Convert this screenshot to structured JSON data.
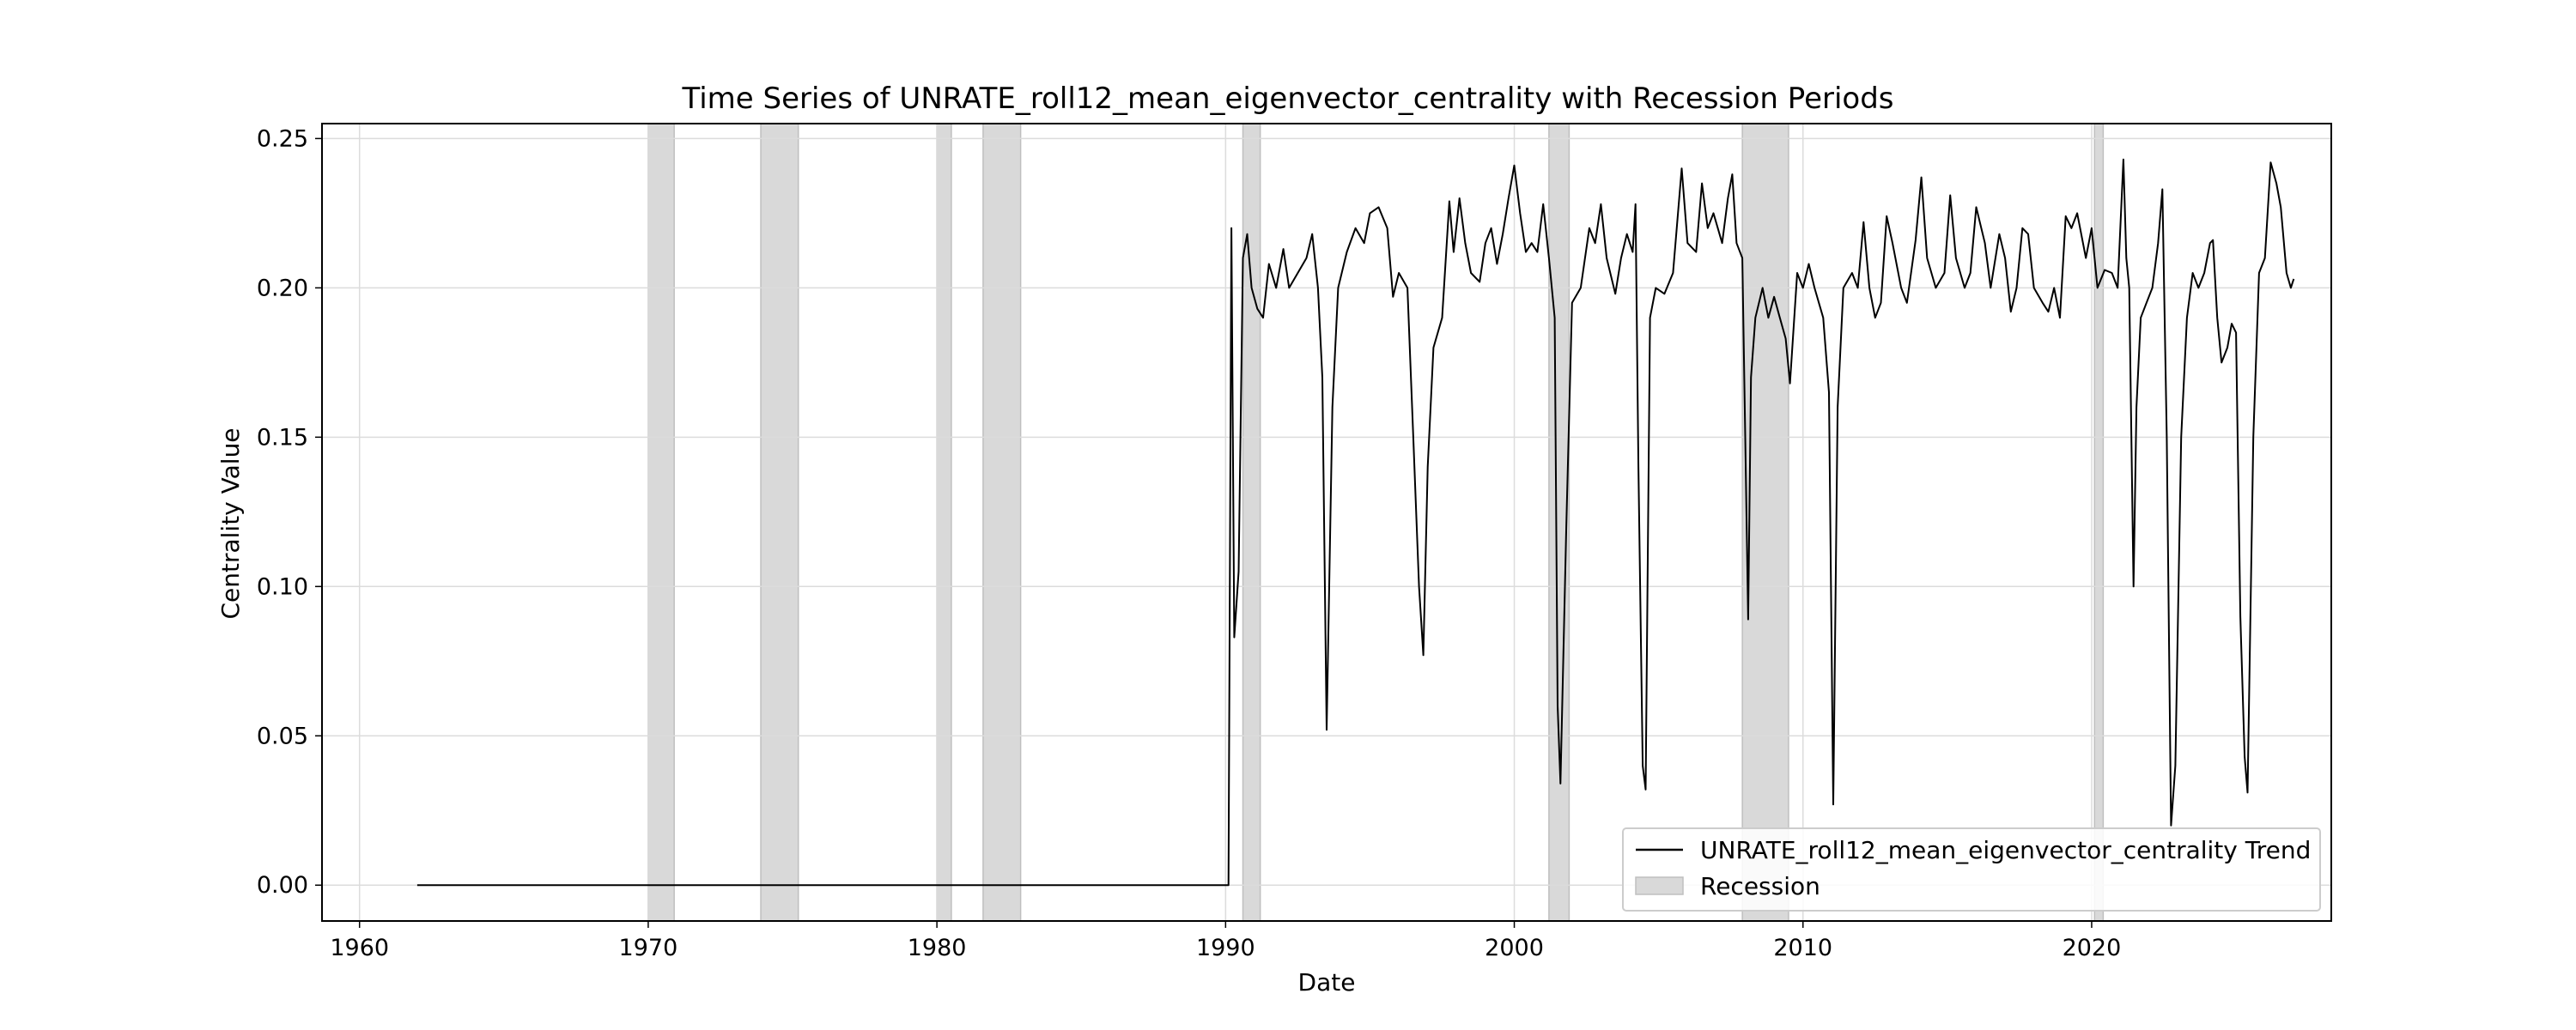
{
  "chart_data": {
    "type": "line",
    "title": "Time Series of UNRATE_roll12_mean_eigenvector_centrality with Recession Periods",
    "xlabel": "Date",
    "ylabel": "Centrality Value",
    "xlim": [
      1958.7,
      2028.3
    ],
    "ylim": [
      -0.012,
      0.255
    ],
    "x_ticks": [
      1960,
      1970,
      1980,
      1990,
      2000,
      2010,
      2020
    ],
    "x_tick_labels": [
      "1960",
      "1970",
      "1980",
      "1990",
      "2000",
      "2010",
      "2020"
    ],
    "y_ticks": [
      0.0,
      0.05,
      0.1,
      0.15,
      0.2,
      0.25
    ],
    "y_tick_labels": [
      "0.00",
      "0.05",
      "0.10",
      "0.15",
      "0.20",
      "0.25"
    ],
    "grid": true,
    "legend_position": "lower-right",
    "series": [
      {
        "name": "UNRATE_roll12_mean_eigenvector_centrality Trend",
        "color": "#000000",
        "points": [
          [
            1962.0,
            0.0
          ],
          [
            1975.0,
            0.0
          ],
          [
            1985.0,
            0.0
          ],
          [
            1990.1,
            0.0
          ],
          [
            1990.2,
            0.22
          ],
          [
            1990.3,
            0.083
          ],
          [
            1990.45,
            0.105
          ],
          [
            1990.6,
            0.21
          ],
          [
            1990.75,
            0.218
          ],
          [
            1990.9,
            0.2
          ],
          [
            1991.1,
            0.193
          ],
          [
            1991.3,
            0.19
          ],
          [
            1991.5,
            0.208
          ],
          [
            1991.75,
            0.2
          ],
          [
            1992.0,
            0.213
          ],
          [
            1992.2,
            0.2
          ],
          [
            1992.5,
            0.205
          ],
          [
            1992.8,
            0.21
          ],
          [
            1993.0,
            0.218
          ],
          [
            1993.2,
            0.2
          ],
          [
            1993.35,
            0.17
          ],
          [
            1993.5,
            0.052
          ],
          [
            1993.7,
            0.16
          ],
          [
            1993.9,
            0.2
          ],
          [
            1994.2,
            0.212
          ],
          [
            1994.5,
            0.22
          ],
          [
            1994.8,
            0.215
          ],
          [
            1995.0,
            0.225
          ],
          [
            1995.3,
            0.227
          ],
          [
            1995.6,
            0.22
          ],
          [
            1995.8,
            0.197
          ],
          [
            1996.0,
            0.205
          ],
          [
            1996.3,
            0.2
          ],
          [
            1996.5,
            0.15
          ],
          [
            1996.7,
            0.1
          ],
          [
            1996.85,
            0.077
          ],
          [
            1997.0,
            0.14
          ],
          [
            1997.2,
            0.18
          ],
          [
            1997.5,
            0.19
          ],
          [
            1997.75,
            0.229
          ],
          [
            1997.9,
            0.212
          ],
          [
            1998.1,
            0.23
          ],
          [
            1998.3,
            0.215
          ],
          [
            1998.5,
            0.205
          ],
          [
            1998.8,
            0.202
          ],
          [
            1999.0,
            0.215
          ],
          [
            1999.2,
            0.22
          ],
          [
            1999.4,
            0.208
          ],
          [
            1999.6,
            0.218
          ],
          [
            1999.8,
            0.23
          ],
          [
            2000.0,
            0.241
          ],
          [
            2000.2,
            0.225
          ],
          [
            2000.4,
            0.212
          ],
          [
            2000.6,
            0.215
          ],
          [
            2000.8,
            0.212
          ],
          [
            2001.0,
            0.228
          ],
          [
            2001.2,
            0.21
          ],
          [
            2001.4,
            0.19
          ],
          [
            2001.5,
            0.06
          ],
          [
            2001.6,
            0.034
          ],
          [
            2001.8,
            0.12
          ],
          [
            2002.0,
            0.195
          ],
          [
            2002.3,
            0.2
          ],
          [
            2002.6,
            0.22
          ],
          [
            2002.8,
            0.215
          ],
          [
            2003.0,
            0.228
          ],
          [
            2003.2,
            0.21
          ],
          [
            2003.5,
            0.198
          ],
          [
            2003.7,
            0.21
          ],
          [
            2003.9,
            0.218
          ],
          [
            2004.1,
            0.212
          ],
          [
            2004.2,
            0.228
          ],
          [
            2004.3,
            0.14
          ],
          [
            2004.45,
            0.04
          ],
          [
            2004.55,
            0.032
          ],
          [
            2004.7,
            0.19
          ],
          [
            2004.9,
            0.2
          ],
          [
            2005.2,
            0.198
          ],
          [
            2005.5,
            0.205
          ],
          [
            2005.8,
            0.24
          ],
          [
            2006.0,
            0.215
          ],
          [
            2006.3,
            0.212
          ],
          [
            2006.5,
            0.235
          ],
          [
            2006.7,
            0.22
          ],
          [
            2006.9,
            0.225
          ],
          [
            2007.2,
            0.215
          ],
          [
            2007.4,
            0.23
          ],
          [
            2007.55,
            0.238
          ],
          [
            2007.7,
            0.215
          ],
          [
            2007.9,
            0.21
          ],
          [
            2008.0,
            0.15
          ],
          [
            2008.1,
            0.089
          ],
          [
            2008.2,
            0.17
          ],
          [
            2008.35,
            0.19
          ],
          [
            2008.6,
            0.2
          ],
          [
            2008.8,
            0.19
          ],
          [
            2009.0,
            0.197
          ],
          [
            2009.2,
            0.19
          ],
          [
            2009.4,
            0.183
          ],
          [
            2009.55,
            0.168
          ],
          [
            2009.8,
            0.205
          ],
          [
            2010.0,
            0.2
          ],
          [
            2010.2,
            0.208
          ],
          [
            2010.4,
            0.2
          ],
          [
            2010.7,
            0.19
          ],
          [
            2010.9,
            0.165
          ],
          [
            2011.05,
            0.027
          ],
          [
            2011.2,
            0.16
          ],
          [
            2011.4,
            0.2
          ],
          [
            2011.7,
            0.205
          ],
          [
            2011.9,
            0.2
          ],
          [
            2012.1,
            0.222
          ],
          [
            2012.3,
            0.2
          ],
          [
            2012.5,
            0.19
          ],
          [
            2012.7,
            0.195
          ],
          [
            2012.9,
            0.224
          ],
          [
            2013.1,
            0.215
          ],
          [
            2013.4,
            0.2
          ],
          [
            2013.6,
            0.195
          ],
          [
            2013.9,
            0.216
          ],
          [
            2014.1,
            0.237
          ],
          [
            2014.3,
            0.21
          ],
          [
            2014.6,
            0.2
          ],
          [
            2014.9,
            0.205
          ],
          [
            2015.1,
            0.231
          ],
          [
            2015.3,
            0.21
          ],
          [
            2015.6,
            0.2
          ],
          [
            2015.8,
            0.205
          ],
          [
            2016.0,
            0.227
          ],
          [
            2016.3,
            0.215
          ],
          [
            2016.5,
            0.2
          ],
          [
            2016.8,
            0.218
          ],
          [
            2017.0,
            0.21
          ],
          [
            2017.2,
            0.192
          ],
          [
            2017.4,
            0.2
          ],
          [
            2017.6,
            0.22
          ],
          [
            2017.8,
            0.218
          ],
          [
            2018.0,
            0.2
          ],
          [
            2018.3,
            0.195
          ],
          [
            2018.5,
            0.192
          ],
          [
            2018.7,
            0.2
          ],
          [
            2018.9,
            0.19
          ],
          [
            2019.1,
            0.224
          ],
          [
            2019.3,
            0.22
          ],
          [
            2019.5,
            0.225
          ],
          [
            2019.8,
            0.21
          ],
          [
            2020.0,
            0.22
          ],
          [
            2020.2,
            0.2
          ],
          [
            2020.45,
            0.206
          ],
          [
            2020.7,
            0.205
          ],
          [
            2020.9,
            0.2
          ],
          [
            2021.1,
            0.243
          ],
          [
            2021.2,
            0.21
          ],
          [
            2021.3,
            0.2
          ],
          [
            2021.45,
            0.1
          ],
          [
            2021.55,
            0.16
          ],
          [
            2021.7,
            0.19
          ],
          [
            2021.9,
            0.195
          ],
          [
            2022.1,
            0.2
          ],
          [
            2022.3,
            0.215
          ],
          [
            2022.45,
            0.233
          ],
          [
            2022.6,
            0.15
          ],
          [
            2022.75,
            0.02
          ],
          [
            2022.9,
            0.04
          ],
          [
            2023.1,
            0.15
          ],
          [
            2023.3,
            0.19
          ],
          [
            2023.5,
            0.205
          ],
          [
            2023.7,
            0.2
          ],
          [
            2023.9,
            0.205
          ],
          [
            2024.1,
            0.215
          ],
          [
            2024.2,
            0.216
          ],
          [
            2024.35,
            0.19
          ],
          [
            2024.5,
            0.175
          ],
          [
            2024.7,
            0.18
          ],
          [
            2024.85,
            0.188
          ],
          [
            2025.0,
            0.185
          ],
          [
            2025.15,
            0.09
          ],
          [
            2025.3,
            0.043
          ],
          [
            2025.4,
            0.031
          ],
          [
            2025.6,
            0.15
          ],
          [
            2025.8,
            0.205
          ],
          [
            2026.0,
            0.21
          ],
          [
            2026.2,
            0.242
          ],
          [
            2026.4,
            0.235
          ],
          [
            2026.55,
            0.227
          ],
          [
            2026.75,
            0.205
          ],
          [
            2026.9,
            0.2
          ],
          [
            2027.0,
            0.203
          ]
        ]
      }
    ],
    "recessions": [
      [
        1970.0,
        1970.9
      ],
      [
        1973.9,
        1975.2
      ],
      [
        1980.0,
        1980.5
      ],
      [
        1981.6,
        1982.9
      ],
      [
        1990.6,
        1991.2
      ],
      [
        2001.2,
        2001.9
      ],
      [
        2007.9,
        2009.5
      ],
      [
        2020.1,
        2020.4
      ]
    ],
    "recession_label": "Recession",
    "colors": {
      "line": "#000000",
      "recession_fill": "#d9d9d9",
      "recession_edge": "#bfbfbf",
      "grid": "#dcdcdc",
      "axes": "#000000"
    }
  }
}
